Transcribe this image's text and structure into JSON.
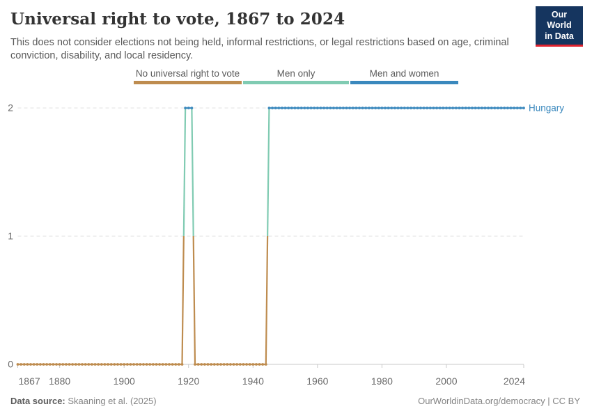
{
  "header": {
    "title": "Universal right to vote, 1867 to 2024",
    "subtitle": "This does not consider elections not being held, informal restrictions, or legal restrictions based on age, criminal conviction, disability, and local residency.",
    "logo": {
      "line1": "Our World",
      "line2": "in Data"
    }
  },
  "legend": {
    "items": [
      {
        "label": "No universal right to vote",
        "color": "#BE8C4F"
      },
      {
        "label": "Men only",
        "color": "#80CBB2"
      },
      {
        "label": "Men and women",
        "color": "#3A88BD"
      }
    ]
  },
  "footer": {
    "source_label": "Data source:",
    "source_value": " Skaaning et al. (2025)",
    "right_text": "OurWorldinData.org/democracy | CC BY"
  },
  "chart_data": {
    "type": "line",
    "title": "Universal right to vote, 1867 to 2024",
    "entity": "Hungary",
    "entity_label_color": "#3A88BD",
    "x": {
      "min": 1867,
      "max": 2024,
      "ticks": [
        1867,
        1880,
        1900,
        1920,
        1940,
        1960,
        1980,
        2000,
        2024
      ]
    },
    "y": {
      "min": 0,
      "max": 2,
      "ticks": [
        0,
        1,
        2
      ]
    },
    "value_meaning": {
      "0": "No universal right to vote",
      "1": "Men only",
      "2": "Men and women"
    },
    "colors_by_value": {
      "0": "#BE8C4F",
      "1": "#80CBB2",
      "2": "#3A88BD"
    },
    "series_runs": [
      {
        "from": 1867,
        "to": 1918,
        "value": 0
      },
      {
        "from": 1919,
        "to": 1921,
        "value": 2
      },
      {
        "from": 1922,
        "to": 1944,
        "value": 0
      },
      {
        "from": 1945,
        "to": 2024,
        "value": 2
      }
    ],
    "grid": "dashed-horizontal",
    "legend_position": "top"
  }
}
